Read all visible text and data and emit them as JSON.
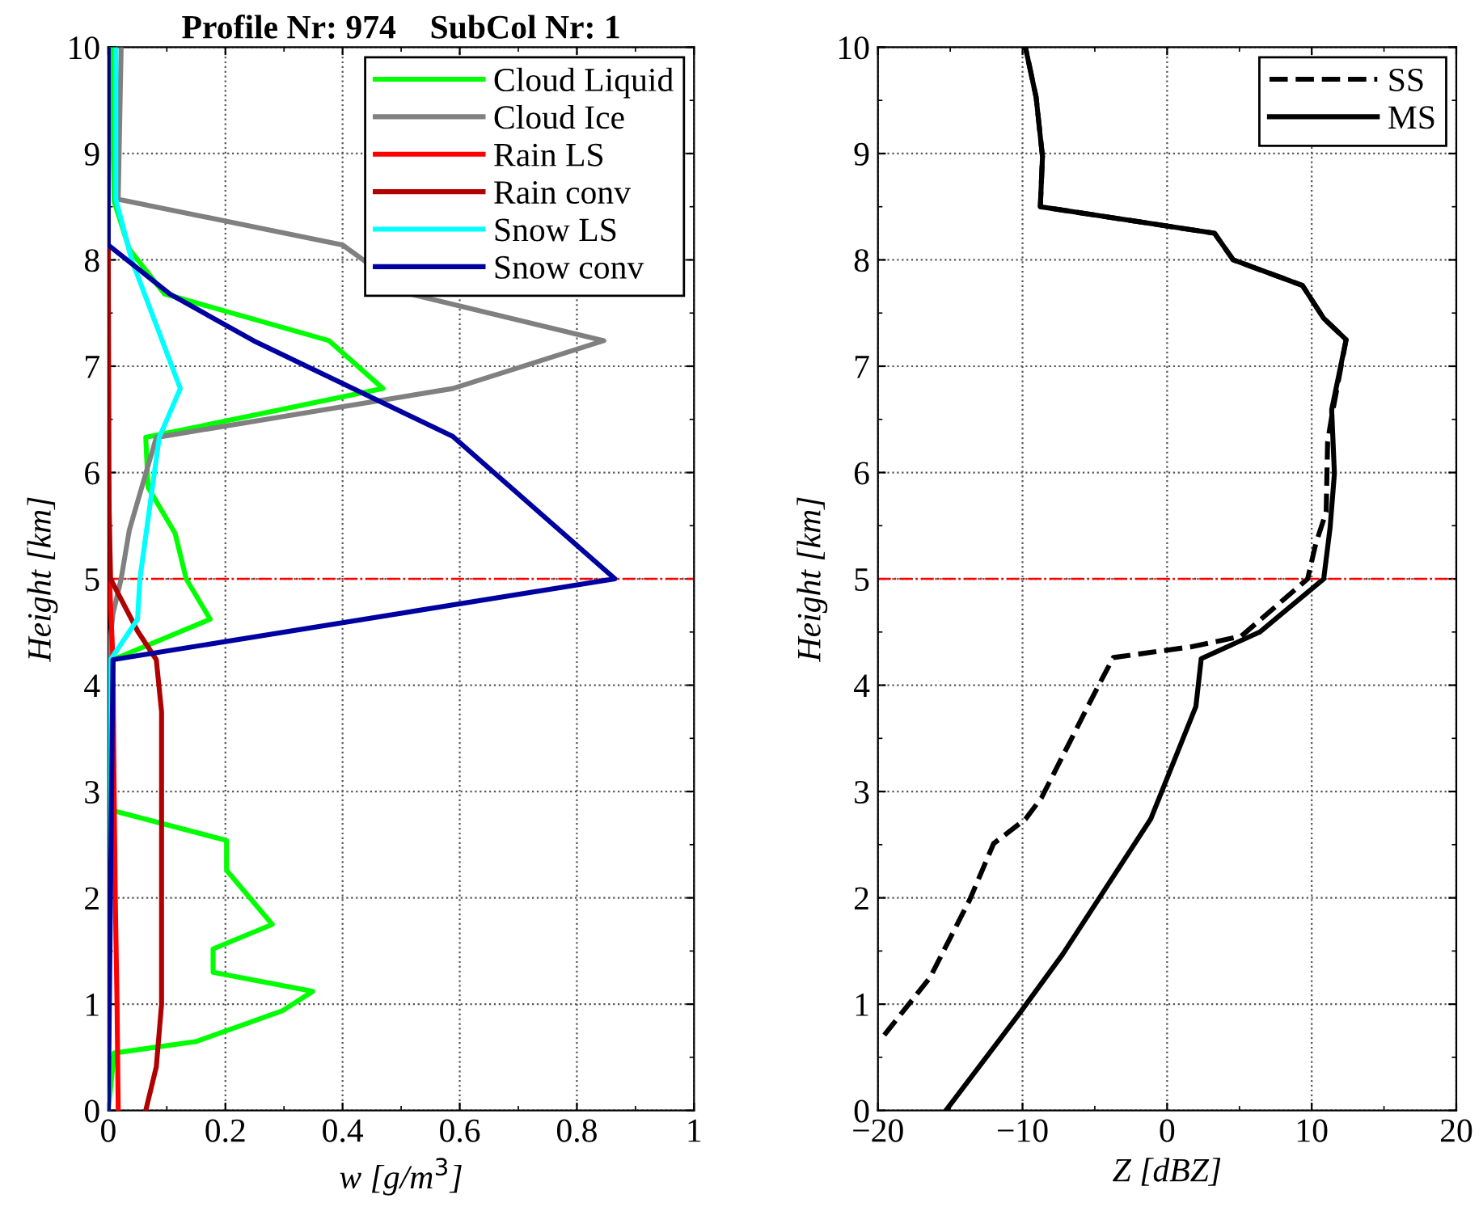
{
  "chart_data": [
    {
      "type": "line",
      "title": "Profile Nr: 974    SubCol Nr: 1",
      "xlabel": "w [g/m$^{3}$]",
      "ylabel": "Height [km]",
      "xlim": [
        0,
        1
      ],
      "xticks": [
        0,
        0.2,
        0.4,
        0.6,
        0.8,
        1
      ],
      "ylim": [
        0,
        10
      ],
      "yticks": [
        0,
        1,
        2,
        3,
        4,
        5,
        6,
        7,
        8,
        9,
        10
      ],
      "grid": true,
      "legend": "top right",
      "line_style": "solid",
      "ref_lines": [
        {
          "axis": "y",
          "value": 5,
          "color": "#ff0000",
          "line_style": "dashdot"
        }
      ],
      "series": [
        {
          "name": "Cloud Liquid",
          "color": "#00ff00",
          "x": [
            0,
            0.01,
            0.151,
            0.298,
            0.349,
            0.179,
            0.179,
            0.28,
            0.202,
            0.202,
            0.008,
            0.008,
            0.174,
            0.133,
            0.114,
            0.068,
            0.064,
            0.469,
            0.377,
            0.096,
            0.036,
            0.01,
            0.005
          ],
          "values": [
            0,
            0.54,
            0.65,
            0.94,
            1.12,
            1.3,
            1.52,
            1.75,
            2.26,
            2.54,
            2.82,
            4.24,
            4.62,
            5.0,
            5.43,
            5.86,
            6.33,
            6.79,
            7.24,
            7.68,
            8.1,
            8.55,
            10
          ]
        },
        {
          "name": "Cloud Ice",
          "color": "#808080",
          "x": [
            0,
            0,
            0.008,
            0.022,
            0.036,
            0.064,
            0.082,
            0.588,
            0.846,
            0.515,
            0.4,
            0.017,
            0.022
          ],
          "values": [
            0,
            4.24,
            4.67,
            5.0,
            5.46,
            5.99,
            6.33,
            6.79,
            7.24,
            7.68,
            8.14,
            8.57,
            10
          ]
        },
        {
          "name": "Rain LS",
          "color": "#ff0000",
          "x": [
            0.017,
            0.015,
            0.012,
            0.01,
            0.008,
            0.002,
            0
          ],
          "values": [
            0,
            1,
            2,
            3,
            4.24,
            5,
            8.1
          ]
        },
        {
          "name": "Rain conv",
          "color": "#b00000",
          "x": [
            0.064,
            0.082,
            0.091,
            0.091,
            0.091,
            0.091,
            0.082,
            0.05,
            0.004,
            0,
            0
          ],
          "values": [
            0,
            0.41,
            1,
            2,
            3,
            3.75,
            4.24,
            4.51,
            5,
            6,
            8.1
          ]
        },
        {
          "name": "Snow LS",
          "color": "#00ffff",
          "x": [
            0,
            0.004,
            0.05,
            0.054,
            0.087,
            0.123,
            0.04,
            0.013,
            0.013
          ],
          "values": [
            0,
            4.24,
            4.62,
            5.0,
            6.33,
            6.79,
            8.0,
            8.57,
            10
          ]
        },
        {
          "name": "Snow conv",
          "color": "#0000a0",
          "x": [
            0,
            0.008,
            0.865,
            0.588,
            0.248,
            0.105,
            0,
            0
          ],
          "values": [
            0,
            4.24,
            5.0,
            6.34,
            7.24,
            7.68,
            8.14,
            10
          ]
        }
      ]
    },
    {
      "type": "line",
      "xlabel": "Z [dBZ]",
      "ylabel": "Height [km]",
      "xlim": [
        -20,
        20
      ],
      "xticks": [
        -20,
        -10,
        0,
        10,
        20
      ],
      "ylim": [
        0,
        10
      ],
      "yticks": [
        0,
        1,
        2,
        3,
        4,
        5,
        6,
        7,
        8,
        9,
        10
      ],
      "grid": true,
      "legend": "top right",
      "ref_lines": [
        {
          "axis": "y",
          "value": 5,
          "color": "#ff0000",
          "line_style": "dashdot"
        }
      ],
      "series": [
        {
          "name": "SS",
          "color": "#000000",
          "line_style": "dashed",
          "x": [
            -19.56,
            -16.4,
            -13.66,
            -12.0,
            -9.8,
            -8.69,
            -5.0,
            -3.72,
            1.62,
            5.12,
            9.72,
            10.28,
            11.0,
            11.1,
            11.4,
            12.38,
            10.83,
            9.36,
            4.57,
            3.28,
            -8.77,
            -8.62,
            -9.06,
            -9.8
          ],
          "values": [
            0.71,
            1.25,
            1.98,
            2.51,
            2.74,
            2.94,
            3.93,
            4.26,
            4.36,
            4.46,
            5.0,
            5.33,
            5.63,
            6.29,
            6.54,
            7.25,
            7.45,
            7.76,
            8.0,
            8.25,
            8.5,
            8.97,
            9.53,
            10
          ]
        },
        {
          "name": "MS",
          "color": "#000000",
          "line_style": "solid",
          "x": [
            -15.3,
            -10.17,
            -7.22,
            -1.14,
            1.99,
            2.36,
            6.41,
            10.83,
            11.27,
            11.57,
            11.38,
            12.38,
            10.83,
            9.36,
            4.57,
            3.28,
            -8.77,
            -8.62,
            -9.06,
            -9.8
          ],
          "values": [
            0,
            0.92,
            1.47,
            2.74,
            3.8,
            4.25,
            4.5,
            5.0,
            5.48,
            5.99,
            6.59,
            7.25,
            7.45,
            7.76,
            8.0,
            8.25,
            8.5,
            8.97,
            9.53,
            10
          ]
        }
      ]
    }
  ]
}
